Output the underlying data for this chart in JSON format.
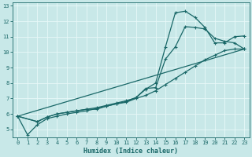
{
  "xlabel": "Humidex (Indice chaleur)",
  "xlim": [
    -0.5,
    23.5
  ],
  "ylim": [
    4.5,
    13.2
  ],
  "yticks": [
    5,
    6,
    7,
    8,
    9,
    10,
    11,
    12,
    13
  ],
  "xticks": [
    0,
    1,
    2,
    3,
    4,
    5,
    6,
    7,
    8,
    9,
    10,
    11,
    12,
    13,
    14,
    15,
    16,
    17,
    18,
    19,
    20,
    21,
    22,
    23
  ],
  "bg_color": "#c8e8e8",
  "grid_color": "#e8f8f8",
  "line_color": "#1a6868",
  "line1_x": [
    0,
    1,
    2,
    3,
    4,
    5,
    6,
    7,
    8,
    9,
    10,
    11,
    12,
    13,
    14,
    15,
    16,
    17,
    18,
    19,
    20,
    21,
    22,
    23
  ],
  "line1_y": [
    5.85,
    4.65,
    5.3,
    5.7,
    5.85,
    6.0,
    6.1,
    6.2,
    6.35,
    6.5,
    6.65,
    6.75,
    7.0,
    7.2,
    7.5,
    7.9,
    8.3,
    8.7,
    9.1,
    9.5,
    9.8,
    10.1,
    10.2,
    10.2
  ],
  "line2_x": [
    0,
    2,
    3,
    4,
    5,
    6,
    7,
    8,
    9,
    10,
    11,
    12,
    13,
    14,
    15,
    16,
    17,
    18,
    19,
    20,
    21,
    22,
    23
  ],
  "line2_y": [
    5.85,
    5.5,
    5.8,
    6.0,
    6.1,
    6.2,
    6.3,
    6.4,
    6.55,
    6.7,
    6.85,
    7.05,
    7.6,
    8.0,
    10.35,
    12.55,
    12.65,
    12.25,
    11.6,
    10.6,
    10.6,
    11.0,
    11.05
  ],
  "line3_x": [
    0,
    2,
    3,
    4,
    5,
    6,
    7,
    8,
    9,
    10,
    11,
    12,
    13,
    14,
    15,
    16,
    17,
    18,
    19,
    20,
    21,
    22,
    23
  ],
  "line3_y": [
    5.85,
    5.5,
    5.8,
    6.0,
    6.1,
    6.2,
    6.3,
    6.3,
    6.5,
    6.65,
    6.8,
    7.05,
    7.65,
    7.7,
    9.55,
    10.35,
    11.65,
    11.6,
    11.5,
    10.9,
    10.7,
    10.6,
    10.2
  ],
  "line4_x": [
    0,
    23
  ],
  "line4_y": [
    5.85,
    10.2
  ]
}
